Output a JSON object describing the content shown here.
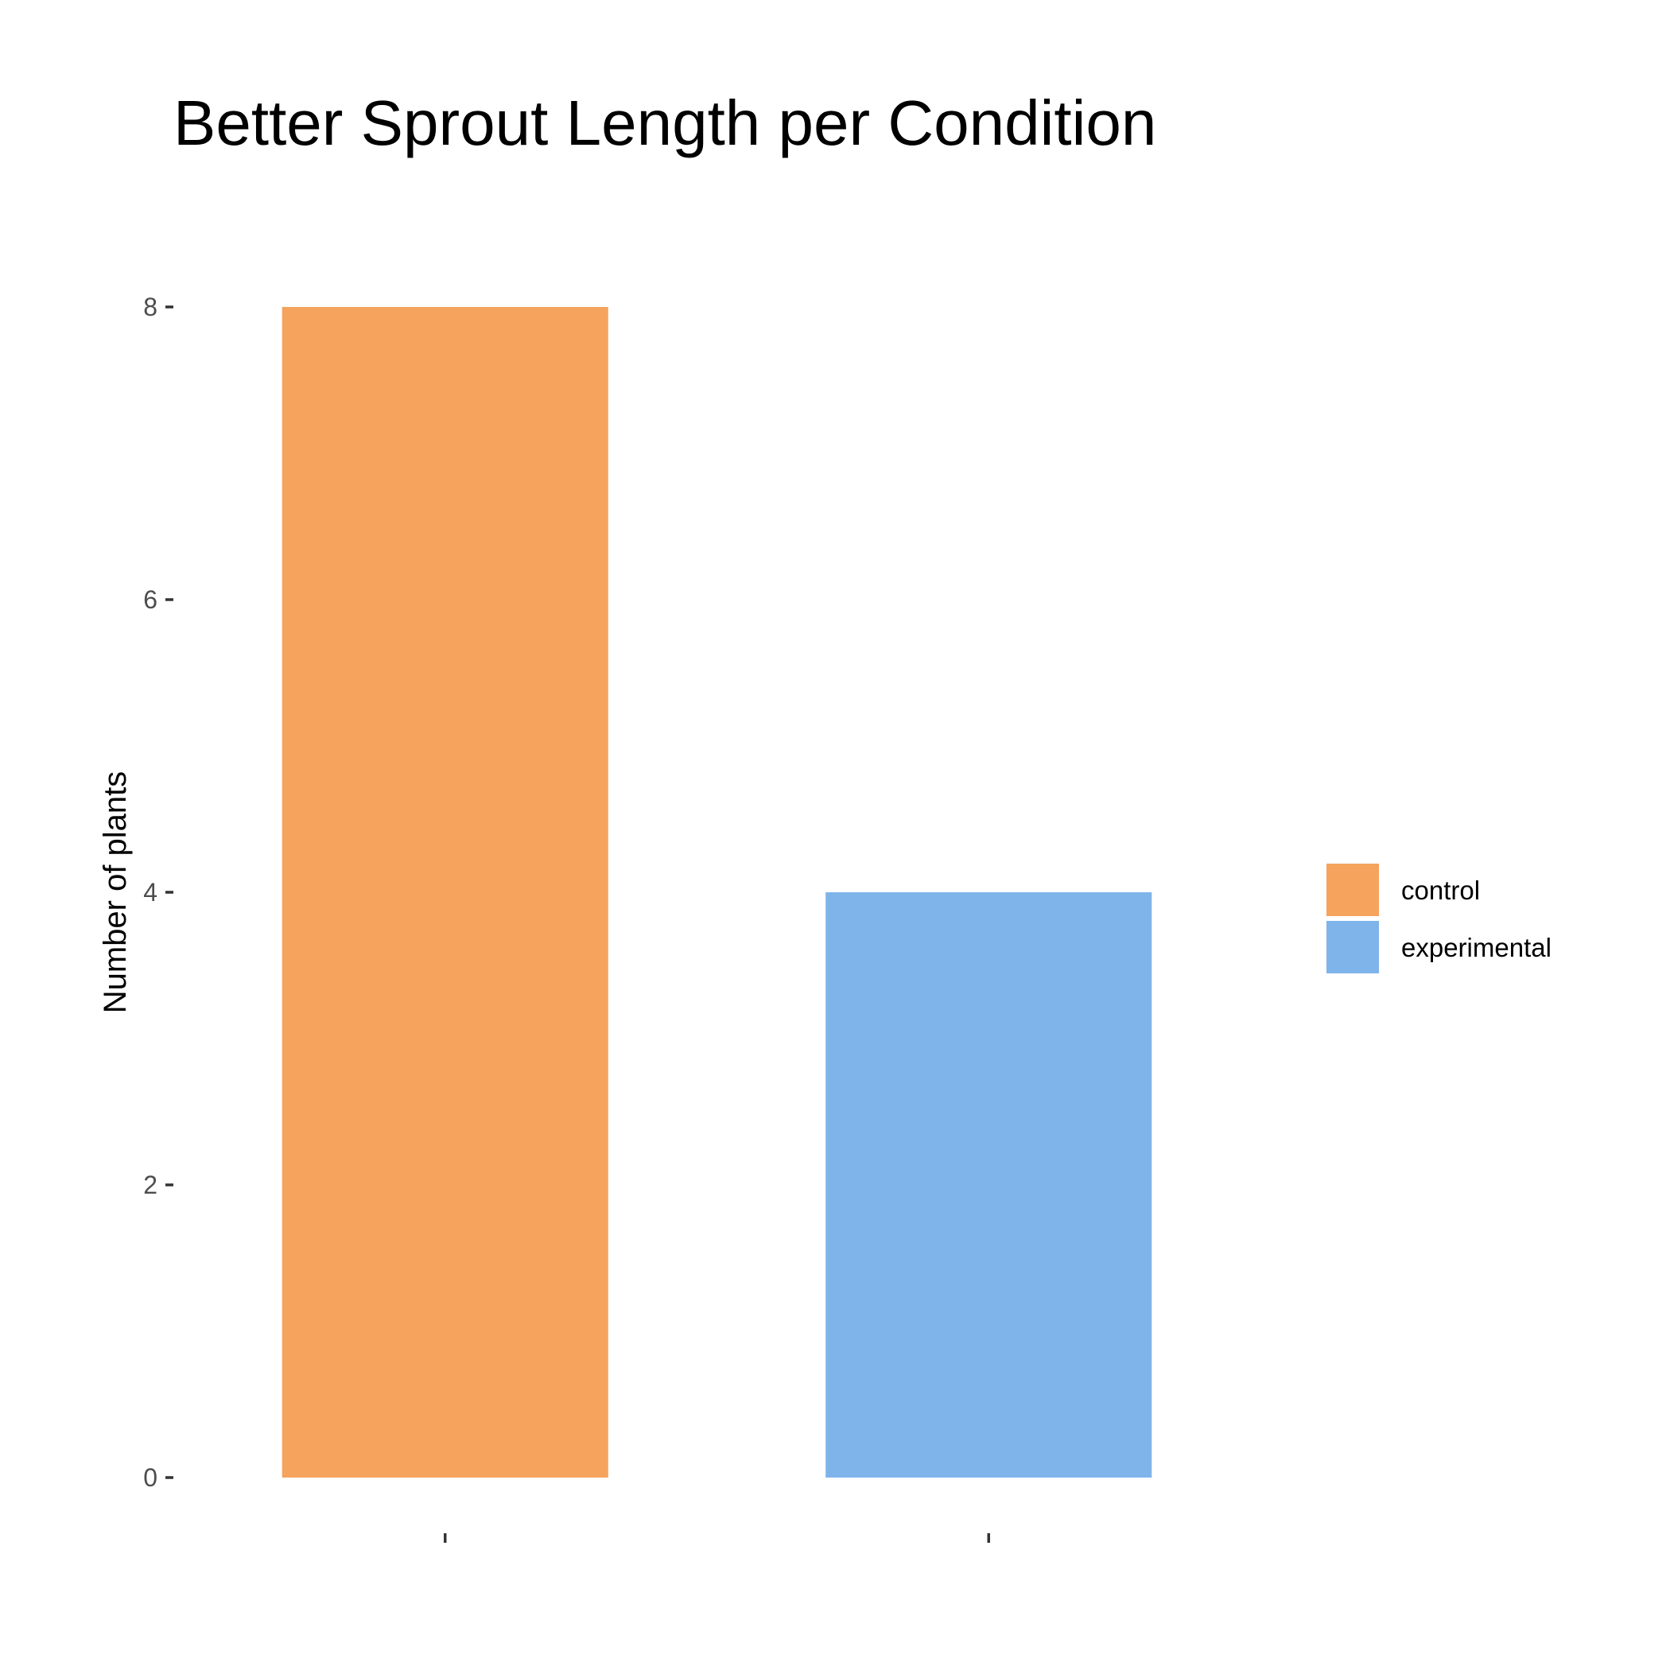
{
  "chart_data": {
    "type": "bar",
    "title": "Better Sprout Length per Condition",
    "xlabel": "",
    "ylabel": "Number of plants",
    "categories": [
      "control",
      "experimental"
    ],
    "values": [
      8,
      4
    ],
    "colors": [
      "#F5A35D",
      "#7EB4EA"
    ],
    "ylim": [
      0,
      8
    ],
    "yticks": [
      "0",
      "2",
      "4",
      "6",
      "8"
    ],
    "grid": false,
    "legend": {
      "position": "right",
      "entries": [
        "control",
        "experimental"
      ]
    }
  }
}
